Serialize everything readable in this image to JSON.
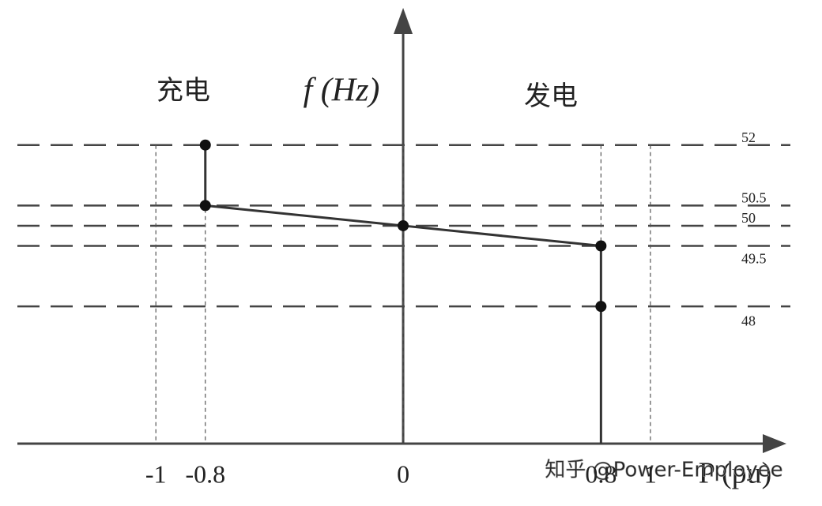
{
  "chart_data": {
    "type": "line",
    "x_label": "P (pu)",
    "y_label": "f (Hz)",
    "annotations": [
      "充电",
      "发电"
    ],
    "watermark": "知乎 @Power-Employee",
    "x": [
      -0.8,
      -0.8,
      0,
      0.8,
      0.8
    ],
    "series": [
      {
        "color": "#333333",
        "values": [
          52,
          50.5,
          50,
          49.5,
          48
        ]
      }
    ],
    "xlim": [
      -1.56,
      1.55
    ],
    "ylim": [
      44.6,
      55.3
    ],
    "xticks": [
      -1,
      -0.8,
      0,
      0.8,
      1
    ],
    "yticks": [
      52,
      50.5,
      50,
      49.5,
      48
    ],
    "grid": true
  }
}
